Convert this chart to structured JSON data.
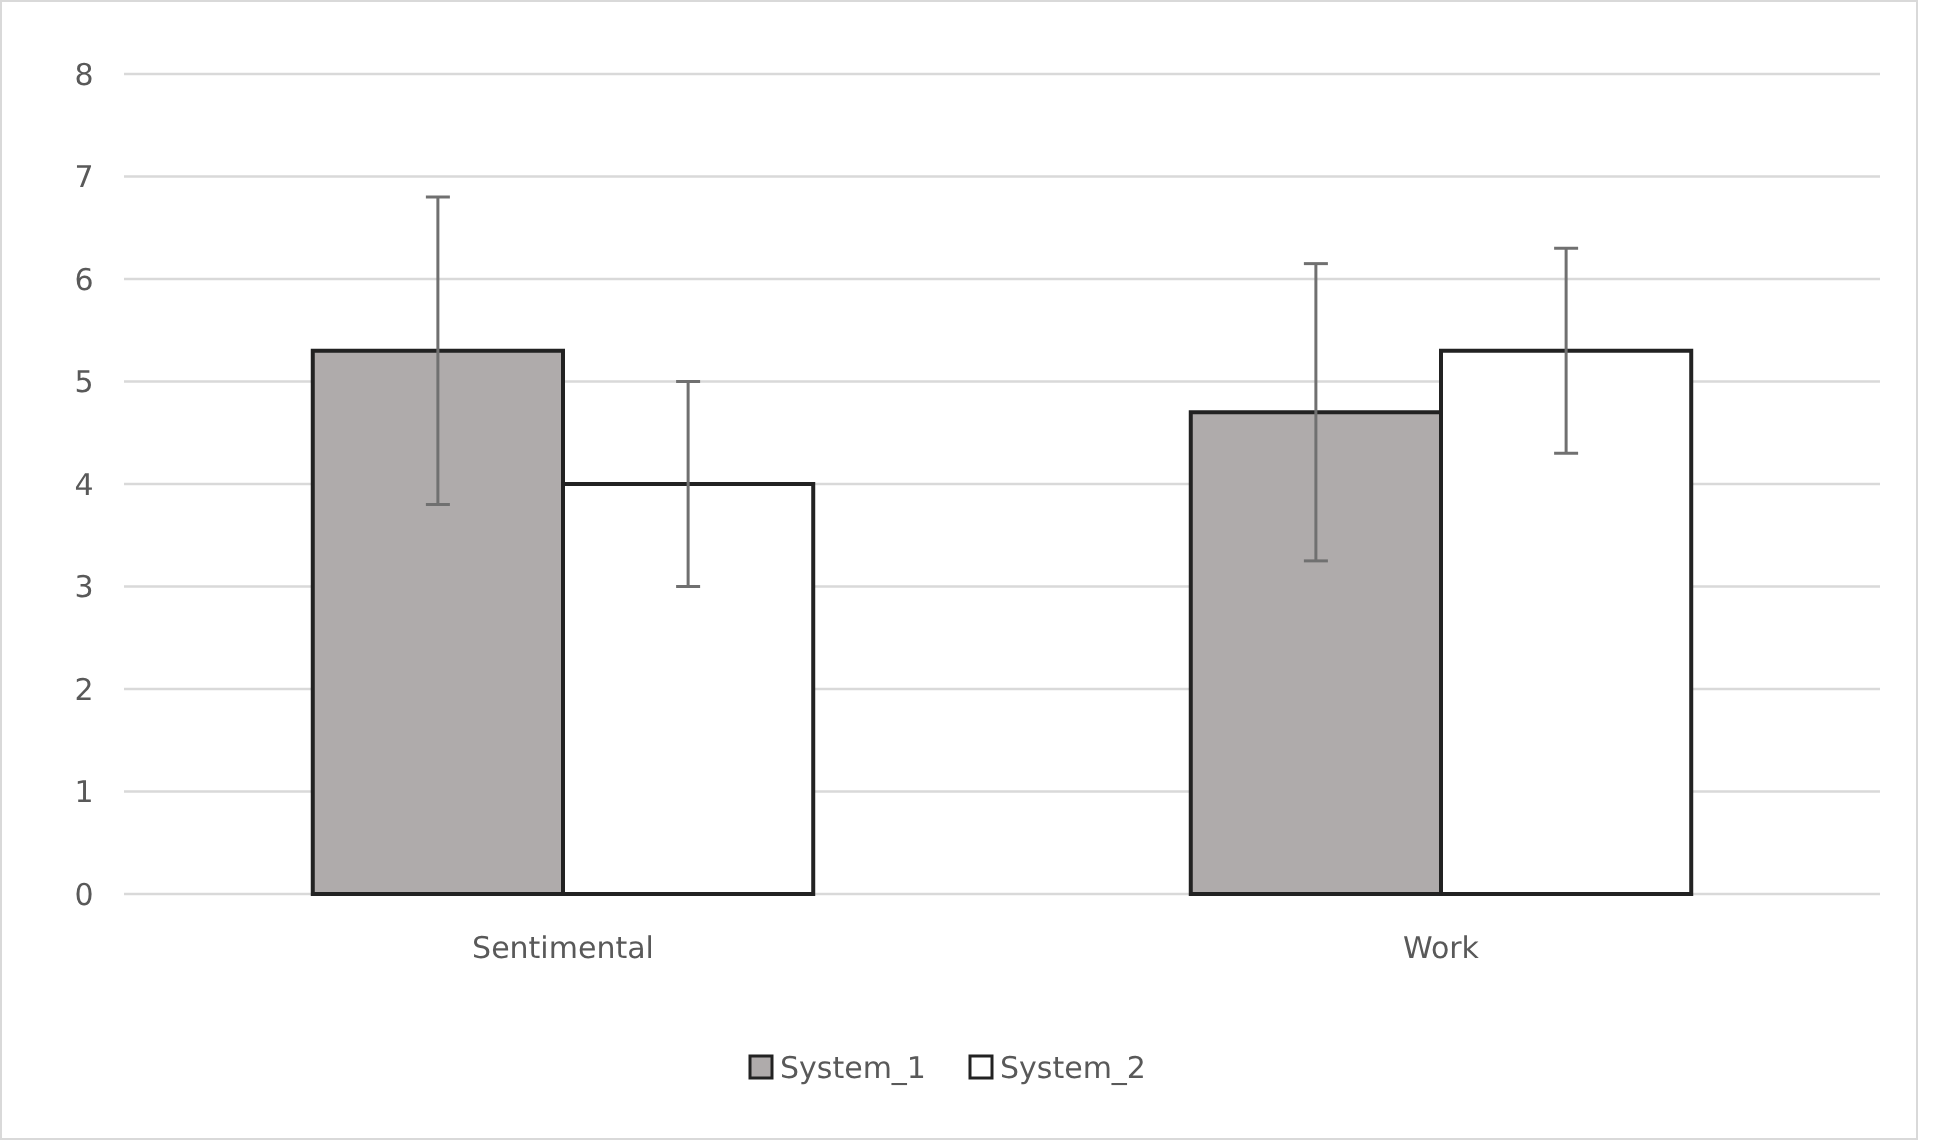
{
  "chart_data": {
    "type": "bar",
    "categories": [
      "Sentimental",
      "Work"
    ],
    "series": [
      {
        "name": "System_1",
        "color": "#afabab",
        "values": [
          5.3,
          4.7
        ],
        "errors": [
          1.5,
          1.45
        ]
      },
      {
        "name": "System_2",
        "color": "#ffffff",
        "values": [
          4.0,
          5.3
        ],
        "errors": [
          1,
          1
        ]
      }
    ],
    "ylim": [
      0,
      8
    ],
    "yticks": [
      0,
      1,
      2,
      3,
      4,
      5,
      6,
      7,
      8
    ],
    "grid": "y",
    "legend": "bottom"
  }
}
